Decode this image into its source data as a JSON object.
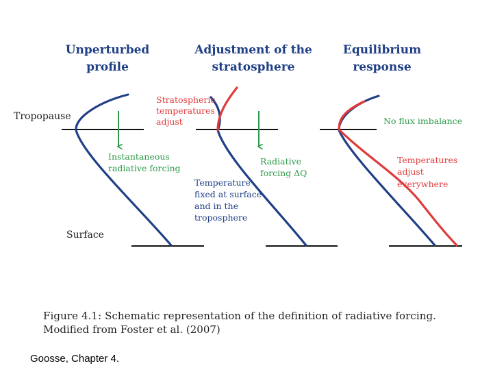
{
  "panels": [
    {
      "title_line1": "Unperturbed",
      "title_line2": "profile"
    },
    {
      "title_line1": "Adjustment of the",
      "title_line2": "stratosphere"
    },
    {
      "title_line1": "Equilibrium",
      "title_line2": "response"
    }
  ],
  "labels": {
    "tropopause": "Tropopause",
    "surface": "Surface",
    "instantaneous_line1": "Instantaneous",
    "instantaneous_line2": "radiative forcing",
    "strat_temp_line1": "Stratospheric",
    "strat_temp_line2": "temperatures",
    "strat_temp_line3": "adjust",
    "radiative_forcing_line1": "Radiative",
    "radiative_forcing_line2": "forcing ΔQ",
    "temp_fixed_line1": "Temperature",
    "temp_fixed_line2": "fixed at surface",
    "temp_fixed_line3": "and in the",
    "temp_fixed_line4": "troposphere",
    "no_flux": "No flux imbalance",
    "temps_adjust_line1": "Temperatures",
    "temps_adjust_line2": "adjust",
    "temps_adjust_line3": "everywhere"
  },
  "caption": {
    "line1": "Figure 4.1: Schematic representation of the definition of radiative forcing.",
    "line2": "Modified from Foster et al. (2007)"
  },
  "credit": "Goosse, Chapter 4.",
  "colors": {
    "profile": "#1f3f86",
    "adjusted_profile": "#e03a3a",
    "forcing_arrow": "#2c9a4a",
    "level_line": "#111111"
  }
}
